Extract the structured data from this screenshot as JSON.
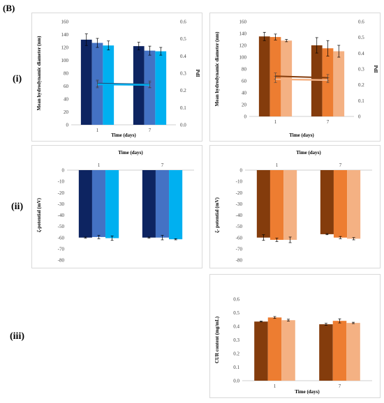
{
  "figure_label": "(B)",
  "row_labels": [
    "(i)",
    "(ii)",
    "(iii)"
  ],
  "colors": {
    "blue_series": [
      "#0d2461",
      "#4472c4",
      "#00b0f0"
    ],
    "orange_series": [
      "#843c0c",
      "#ed7d31",
      "#f4b183"
    ],
    "pdi_line_blue": [
      "#1f4e79",
      "#00b0f0"
    ],
    "pdi_line_orange": [
      "#843c0c",
      "#f4b183"
    ],
    "axis": "#bfbfbf",
    "gridline": "#d9d9d9"
  },
  "chart_data": [
    {
      "id": "size-blue",
      "type": "bar",
      "categories": [
        "1",
        "7"
      ],
      "xlabel": "Time (days)",
      "ylabel": "Mean hydrodynamic diameter (nm)",
      "y2label": "PdI",
      "ylim": [
        0,
        160
      ],
      "yticks": [
        "0",
        "20",
        "40",
        "60",
        "80",
        "100",
        "120",
        "140",
        "160"
      ],
      "y2lim": [
        0,
        0.6
      ],
      "y2ticks": [
        "0.0",
        "0.1",
        "0.2",
        "0.3",
        "0.4",
        "0.5",
        "0.6"
      ],
      "series": [
        {
          "values": [
            132,
            122
          ],
          "errors": [
            9,
            6
          ]
        },
        {
          "values": [
            127,
            115
          ],
          "errors": [
            7,
            7
          ]
        },
        {
          "values": [
            123,
            114
          ],
          "errors": [
            7,
            6
          ]
        }
      ],
      "pdi_lines": [
        {
          "values": [
            0.24,
            0.235
          ],
          "errors": [
            0.02,
            0.02
          ]
        },
        {
          "values": [
            0.235,
            0.232
          ],
          "errors": [
            0.02,
            0.015
          ]
        }
      ]
    },
    {
      "id": "size-orange",
      "type": "bar",
      "categories": [
        "1",
        "7"
      ],
      "xlabel": "Time (days)",
      "ylabel": "Mean hydrodynamic diameter (nm)",
      "y2label": "PdI",
      "ylim": [
        0,
        160
      ],
      "yticks": [
        "0",
        "20",
        "40",
        "60",
        "80",
        "100",
        "120",
        "140",
        "160"
      ],
      "y2lim": [
        0,
        0.6
      ],
      "y2ticks": [
        "0",
        "0.1",
        "0.2",
        "0.3",
        "0.4",
        "0.5",
        "0.6"
      ],
      "series": [
        {
          "values": [
            135,
            120
          ],
          "errors": [
            7,
            13
          ]
        },
        {
          "values": [
            134,
            115
          ],
          "errors": [
            5,
            13
          ]
        },
        {
          "values": [
            128,
            110
          ],
          "errors": [
            2,
            10
          ]
        }
      ],
      "pdi_lines": [
        {
          "values": [
            0.255,
            0.245
          ],
          "errors": [
            0.02,
            0.02
          ]
        },
        {
          "values": [
            0.235,
            0.23
          ],
          "errors": [
            0.02,
            0.015
          ]
        }
      ]
    },
    {
      "id": "zeta-blue",
      "type": "bar",
      "categories": [
        "1",
        "7"
      ],
      "xlabel": "Time (days)",
      "ylabel": "ζ-potential (mV)",
      "ylim": [
        -80,
        0
      ],
      "yticks": [
        "0",
        "-10",
        "-20",
        "-30",
        "-40",
        "-50",
        "-60",
        "-70",
        "-80"
      ],
      "series": [
        {
          "values": [
            -60,
            -60
          ],
          "errors": [
            0.5,
            0.5
          ]
        },
        {
          "values": [
            -59.5,
            -60
          ],
          "errors": [
            1.5,
            2
          ]
        },
        {
          "values": [
            -60.5,
            -61.5
          ],
          "errors": [
            2,
            0.5
          ]
        }
      ]
    },
    {
      "id": "zeta-orange",
      "type": "bar",
      "categories": [
        "1",
        "7"
      ],
      "xlabel": "Time (days)",
      "ylabel": "ζ- potential (mV)",
      "ylim": [
        -80,
        0
      ],
      "yticks": [
        "0",
        "-10",
        "-20",
        "-30",
        "-40",
        "-50",
        "-60",
        "-70",
        "-80"
      ],
      "series": [
        {
          "values": [
            -60,
            -57
          ],
          "errors": [
            2.5,
            0.5
          ]
        },
        {
          "values": [
            -62,
            -60
          ],
          "errors": [
            1.5,
            1
          ]
        },
        {
          "values": [
            -62,
            -61
          ],
          "errors": [
            2.5,
            1
          ]
        }
      ]
    },
    {
      "id": "cur-orange",
      "type": "bar",
      "categories": [
        "1",
        "7"
      ],
      "xlabel": "Time (days)",
      "ylabel": "CUR content (mg/mL)",
      "ylim": [
        0,
        0.6
      ],
      "yticks": [
        "0.0",
        "0.1",
        "0.2",
        "0.3",
        "0.4",
        "0.5",
        "0.6"
      ],
      "series": [
        {
          "values": [
            0.435,
            0.415
          ],
          "errors": [
            0.003,
            0.007
          ]
        },
        {
          "values": [
            0.465,
            0.44
          ],
          "errors": [
            0.007,
            0.015
          ]
        },
        {
          "values": [
            0.445,
            0.425
          ],
          "errors": [
            0.007,
            0.005
          ]
        }
      ]
    }
  ]
}
